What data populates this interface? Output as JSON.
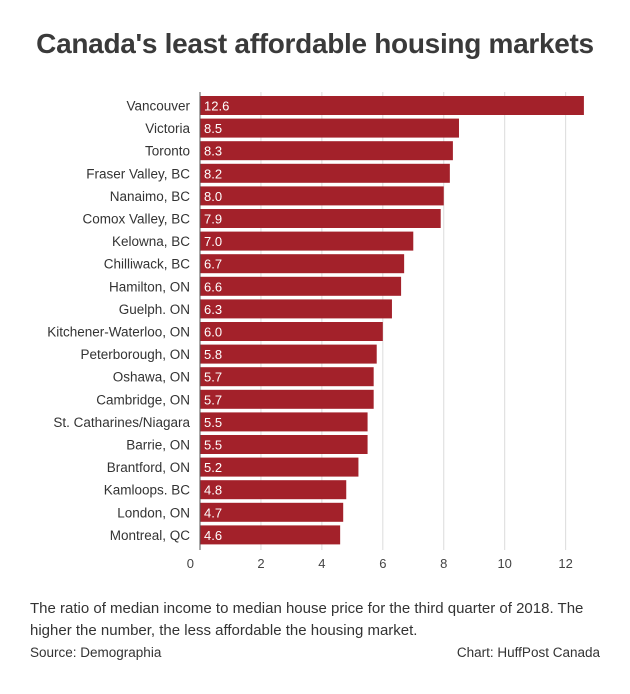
{
  "title": "Canada's least affordable housing markets",
  "caption": "The ratio of median income to median house price for the third quarter of 2018. The higher the number, the less affordable the housing market.",
  "source": "Source: Demographia",
  "credit": "Chart: HuffPost Canada",
  "colors": {
    "bar": "#a3212a",
    "grid": "#dcdcdc",
    "axis": "#555555"
  },
  "chart_data": {
    "type": "bar",
    "orientation": "horizontal",
    "categories": [
      "Vancouver",
      "Victoria",
      "Toronto",
      "Fraser Valley, BC",
      "Nanaimo, BC",
      "Comox Valley, BC",
      "Kelowna, BC",
      "Chilliwack, BC",
      "Hamilton, ON",
      "Guelph. ON",
      "Kitchener-Waterloo, ON",
      "Peterborough, ON",
      "Oshawa, ON",
      "Cambridge, ON",
      "St. Catharines/Niagara",
      "Barrie, ON",
      "Brantford, ON",
      "Kamloops. BC",
      "London, ON",
      "Montreal, QC"
    ],
    "values": [
      12.6,
      8.5,
      8.3,
      8.2,
      8.0,
      7.9,
      7.0,
      6.7,
      6.6,
      6.3,
      6.0,
      5.8,
      5.7,
      5.7,
      5.5,
      5.5,
      5.2,
      4.8,
      4.7,
      4.6
    ],
    "value_labels": [
      "12.6",
      "8.5",
      "8.3",
      "8.2",
      "8.0",
      "7.9",
      "7.0",
      "6.7",
      "6.6",
      "6.3",
      "6.0",
      "5.8",
      "5.7",
      "5.7",
      "5.5",
      "5.5",
      "5.2",
      "4.8",
      "4.7",
      "4.6"
    ],
    "xticks": [
      0,
      2,
      4,
      6,
      8,
      10,
      12
    ],
    "xlim": [
      0,
      12.8
    ],
    "grid": true
  }
}
